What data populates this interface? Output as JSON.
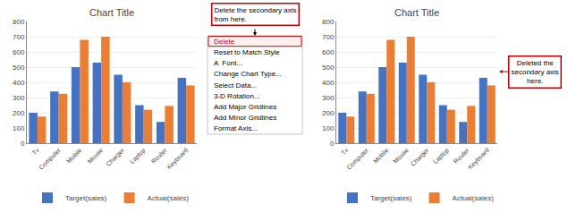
{
  "chart_data": [
    {
      "type": "bar",
      "title": "Chart Title",
      "categories": [
        "Tv",
        "Computer",
        "Mobile",
        "Mouse",
        "Charger",
        "Laptop",
        "Router",
        "Keyboard"
      ],
      "series": [
        {
          "name": "Target(sales)",
          "color": "#4472C4",
          "values": [
            200,
            340,
            500,
            530,
            450,
            250,
            140,
            430
          ]
        },
        {
          "name": "Actual(sales)",
          "color": "#ED7D31",
          "values": [
            175,
            325,
            680,
            700,
            400,
            220,
            245,
            380
          ]
        }
      ],
      "ylim": [
        0,
        800
      ],
      "yticks": [
        0,
        100,
        200,
        300,
        400,
        500,
        600,
        700,
        800
      ],
      "grid": true,
      "legend": "bottom",
      "annotations": [
        "Delete the secondary axis\nfrom here."
      ],
      "menu_items": [
        "Delete",
        "Reset to Match Style",
        "A  Font...",
        "Change Chart Type...",
        "Select Data...",
        "3-D Rotation...",
        "Add Major Gridlines",
        "Add Minor Gridlines",
        "Format Axis..."
      ]
    },
    {
      "type": "bar",
      "title": "Chart Title",
      "categories": [
        "Tv",
        "Computer",
        "Mobile",
        "Mouse",
        "Charger",
        "Laptop",
        "Router",
        "Keyboard"
      ],
      "series": [
        {
          "name": "Target(sales)",
          "color": "#4472C4",
          "values": [
            200,
            340,
            500,
            530,
            450,
            250,
            140,
            430
          ]
        },
        {
          "name": "Actual(sales)",
          "color": "#ED7D31",
          "values": [
            175,
            325,
            680,
            700,
            400,
            220,
            245,
            380
          ]
        }
      ],
      "ylim": [
        0,
        800
      ],
      "yticks": [
        0,
        100,
        200,
        300,
        400,
        500,
        600,
        700,
        800
      ],
      "grid": true,
      "legend": "bottom",
      "annotations": [
        "Deleted the\nsecondary axis\nhere."
      ]
    }
  ]
}
